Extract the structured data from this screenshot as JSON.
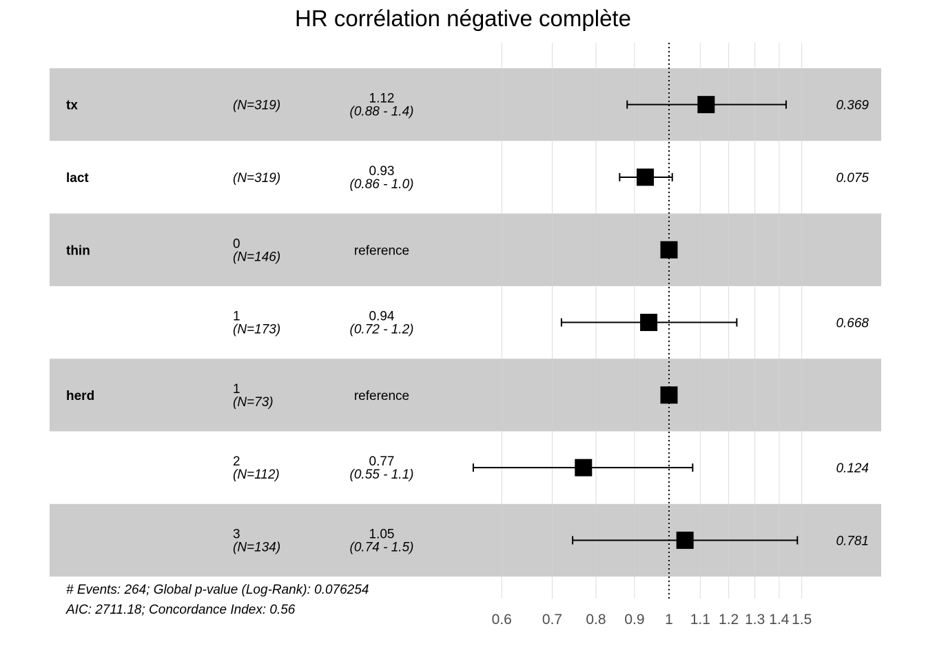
{
  "title": "HR corrélation négative complète",
  "chart_data": {
    "type": "forest",
    "title": "HR corrélation négative complète",
    "x_scale": "log",
    "xlim": [
      0.545,
      1.6
    ],
    "reference_line": 1,
    "x_ticks": [
      0.6,
      0.7,
      0.8,
      0.9,
      1,
      1.1,
      1.2,
      1.3,
      1.4,
      1.5
    ],
    "x_tick_labels": [
      "0.6",
      "0.7",
      "0.8",
      "0.9",
      "1",
      "1.1",
      "1.2",
      "1.3",
      "1.4",
      "1.5"
    ],
    "grid": true,
    "rows": [
      {
        "variable": "tx",
        "level": "",
        "n": "(N=319)",
        "hr": 1.12,
        "lower": 0.88,
        "upper": 1.43,
        "hr_label": "1.12",
        "ci_label": "(0.88 - 1.4)",
        "p": "0.369",
        "shaded": true
      },
      {
        "variable": "lact",
        "level": "",
        "n": "(N=319)",
        "hr": 0.93,
        "lower": 0.86,
        "upper": 1.01,
        "hr_label": "0.93",
        "ci_label": "(0.86 - 1.0)",
        "p": "0.075",
        "shaded": false
      },
      {
        "variable": "thin",
        "level": "0",
        "n": "(N=146)",
        "hr": 1.0,
        "lower": null,
        "upper": null,
        "hr_label": "reference",
        "ci_label": "",
        "p": "",
        "shaded": true
      },
      {
        "variable": "",
        "level": "1",
        "n": "(N=173)",
        "hr": 0.94,
        "lower": 0.72,
        "upper": 1.23,
        "hr_label": "0.94",
        "ci_label": "(0.72 - 1.2)",
        "p": "0.668",
        "shaded": false
      },
      {
        "variable": "herd",
        "level": "1",
        "n": "(N=73)",
        "hr": 1.0,
        "lower": null,
        "upper": null,
        "hr_label": "reference",
        "ci_label": "",
        "p": "",
        "shaded": true
      },
      {
        "variable": "",
        "level": "2",
        "n": "(N=112)",
        "hr": 0.77,
        "lower": 0.55,
        "upper": 1.075,
        "hr_label": "0.77",
        "ci_label": "(0.55 - 1.1)",
        "p": "0.124",
        "shaded": false
      },
      {
        "variable": "",
        "level": "3",
        "n": "(N=134)",
        "hr": 1.05,
        "lower": 0.745,
        "upper": 1.48,
        "hr_label": "1.05",
        "ci_label": "(0.74 - 1.5)",
        "p": "0.781",
        "shaded": true
      }
    ],
    "annotations": [
      "# Events: 264; Global p-value (Log-Rank): 0.076254",
      "AIC: 2711.18; Concordance Index: 0.56"
    ],
    "colors": {
      "shade": "#cccccc",
      "grid": "#d3d3d3",
      "marker": "#000000",
      "tick_text": "#4d4d4d"
    }
  }
}
